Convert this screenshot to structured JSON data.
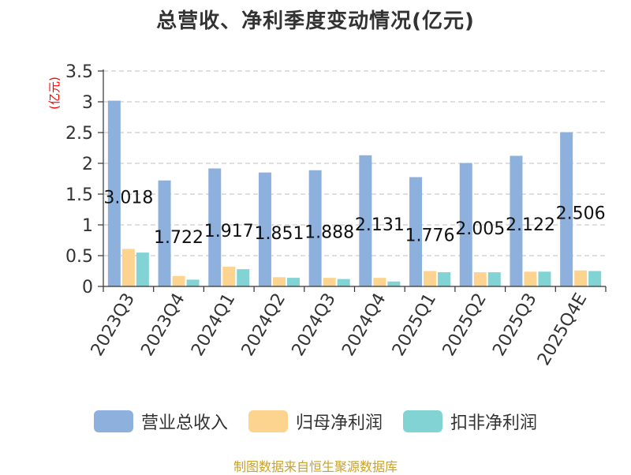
{
  "title": "总营收、净利季度变动情况(亿元)",
  "source_note": "制图数据来自恒生聚源数据库",
  "colors": {
    "series_0": "#8eb0dd",
    "series_1": "#fdd48f",
    "series_2": "#82d3d3",
    "grid": "#cccccc",
    "axis": "#333333",
    "unit": "#ff0000"
  },
  "chart_data": {
    "type": "bar",
    "title": "总营收、净利季度变动情况(亿元)",
    "ylabel": "(亿元)",
    "xlabel": "",
    "ylim": [
      0,
      3.5
    ],
    "yticks": [
      "0",
      "0.5",
      "1",
      "1.5",
      "2",
      "2.5",
      "3",
      "3.5"
    ],
    "grid": true,
    "legend_position": "bottom",
    "categories": [
      "2023Q3",
      "2023Q4",
      "2024Q1",
      "2024Q2",
      "2024Q3",
      "2024Q4",
      "2025Q1",
      "2025Q2",
      "2025Q3",
      "2025Q4E"
    ],
    "series": [
      {
        "name": "营业总收入",
        "values": [
          3.018,
          1.722,
          1.917,
          1.851,
          1.888,
          2.131,
          1.776,
          2.005,
          2.122,
          2.506
        ]
      },
      {
        "name": "归母净利润",
        "values": [
          0.61,
          0.17,
          0.32,
          0.15,
          0.14,
          0.14,
          0.25,
          0.23,
          0.24,
          0.26
        ]
      },
      {
        "name": "扣非净利润",
        "values": [
          0.55,
          0.11,
          0.28,
          0.14,
          0.12,
          0.08,
          0.23,
          0.23,
          0.24,
          0.25
        ]
      }
    ],
    "data_labels": [
      "3.018",
      "1.722",
      "1.917",
      "1.851",
      "1.888",
      "2.131",
      "1.776",
      "2.005",
      "2.122",
      "2.506"
    ]
  }
}
